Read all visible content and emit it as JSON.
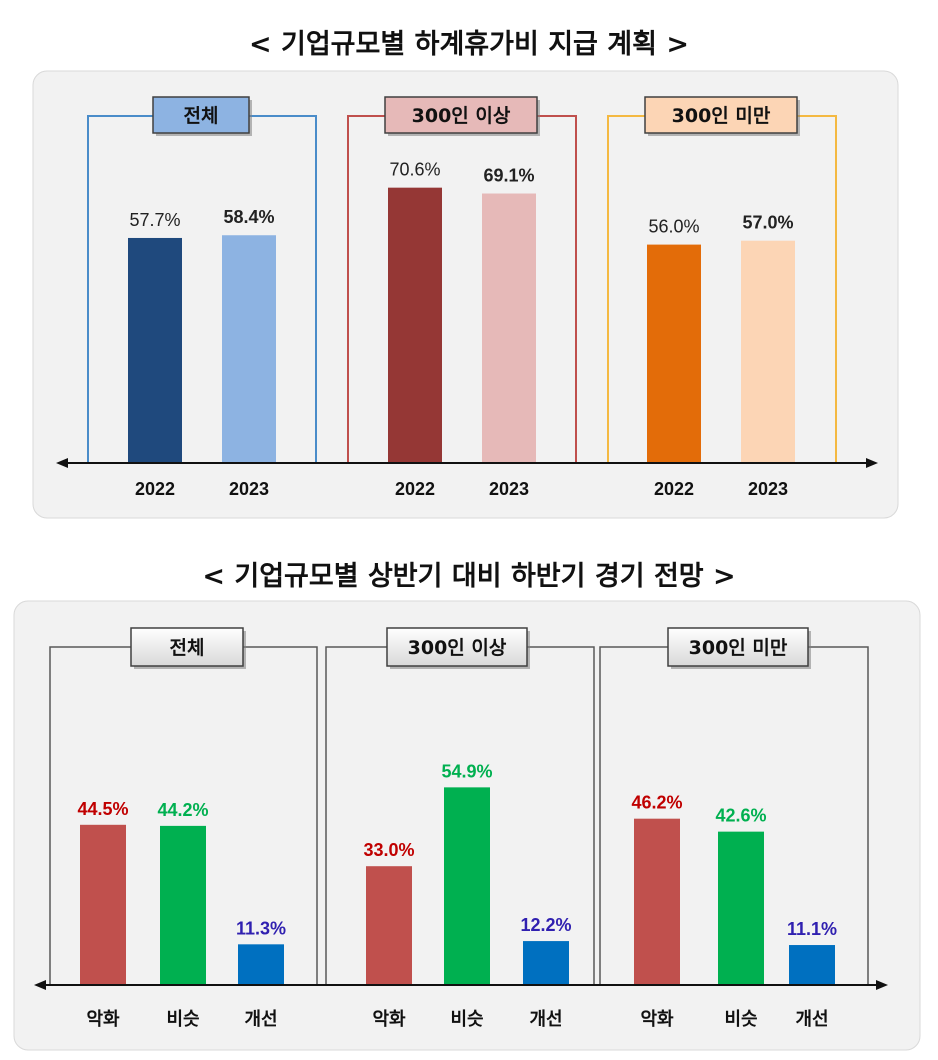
{
  "chart_data": [
    {
      "type": "bar",
      "title": "< 기업규모별 하계휴가비 지급 계획 >",
      "panels": [
        {
          "name": "전체",
          "categories": [
            "2022",
            "2023"
          ],
          "values": [
            57.7,
            58.4
          ],
          "value_labels": [
            "57.7%",
            "58.4%"
          ],
          "colors": [
            "#1f497d",
            "#8db3e2"
          ],
          "frame_color": "#4a8cc9",
          "label_bg": "#8db3e2"
        },
        {
          "name": "300인 이상",
          "categories": [
            "2022",
            "2023"
          ],
          "values": [
            70.6,
            69.1
          ],
          "value_labels": [
            "70.6%",
            "69.1%"
          ],
          "colors": [
            "#953735",
            "#e6b9b8"
          ],
          "frame_color": "#c0504d",
          "label_bg": "#e6b9b8"
        },
        {
          "name": "300인 미만",
          "categories": [
            "2022",
            "2023"
          ],
          "values": [
            56.0,
            57.0
          ],
          "value_labels": [
            "56.0%",
            "57.0%"
          ],
          "colors": [
            "#e36c09",
            "#fcd5b5"
          ],
          "frame_color": "#f4b942",
          "label_bg": "#fcd5b5"
        }
      ]
    },
    {
      "type": "bar",
      "title": "< 기업규모별 상반기 대비 하반기 경기 전망 >",
      "categories": [
        "악화",
        "비슷",
        "개선"
      ],
      "series_colors": [
        "#c0504d",
        "#00b050",
        "#0070c0"
      ],
      "label_colors": [
        "#c00000",
        "#00b050",
        "#3020b0"
      ],
      "panels": [
        {
          "name": "전체",
          "values": [
            44.5,
            44.2,
            11.3
          ],
          "value_labels": [
            "44.5%",
            "44.2%",
            "11.3%"
          ]
        },
        {
          "name": "300인 이상",
          "values": [
            33.0,
            54.9,
            12.2
          ],
          "value_labels": [
            "33.0%",
            "54.9%",
            "12.2%"
          ]
        },
        {
          "name": "300인 미만",
          "values": [
            46.2,
            42.6,
            11.1
          ],
          "value_labels": [
            "46.2%",
            "42.6%",
            "11.1%"
          ]
        }
      ]
    }
  ]
}
